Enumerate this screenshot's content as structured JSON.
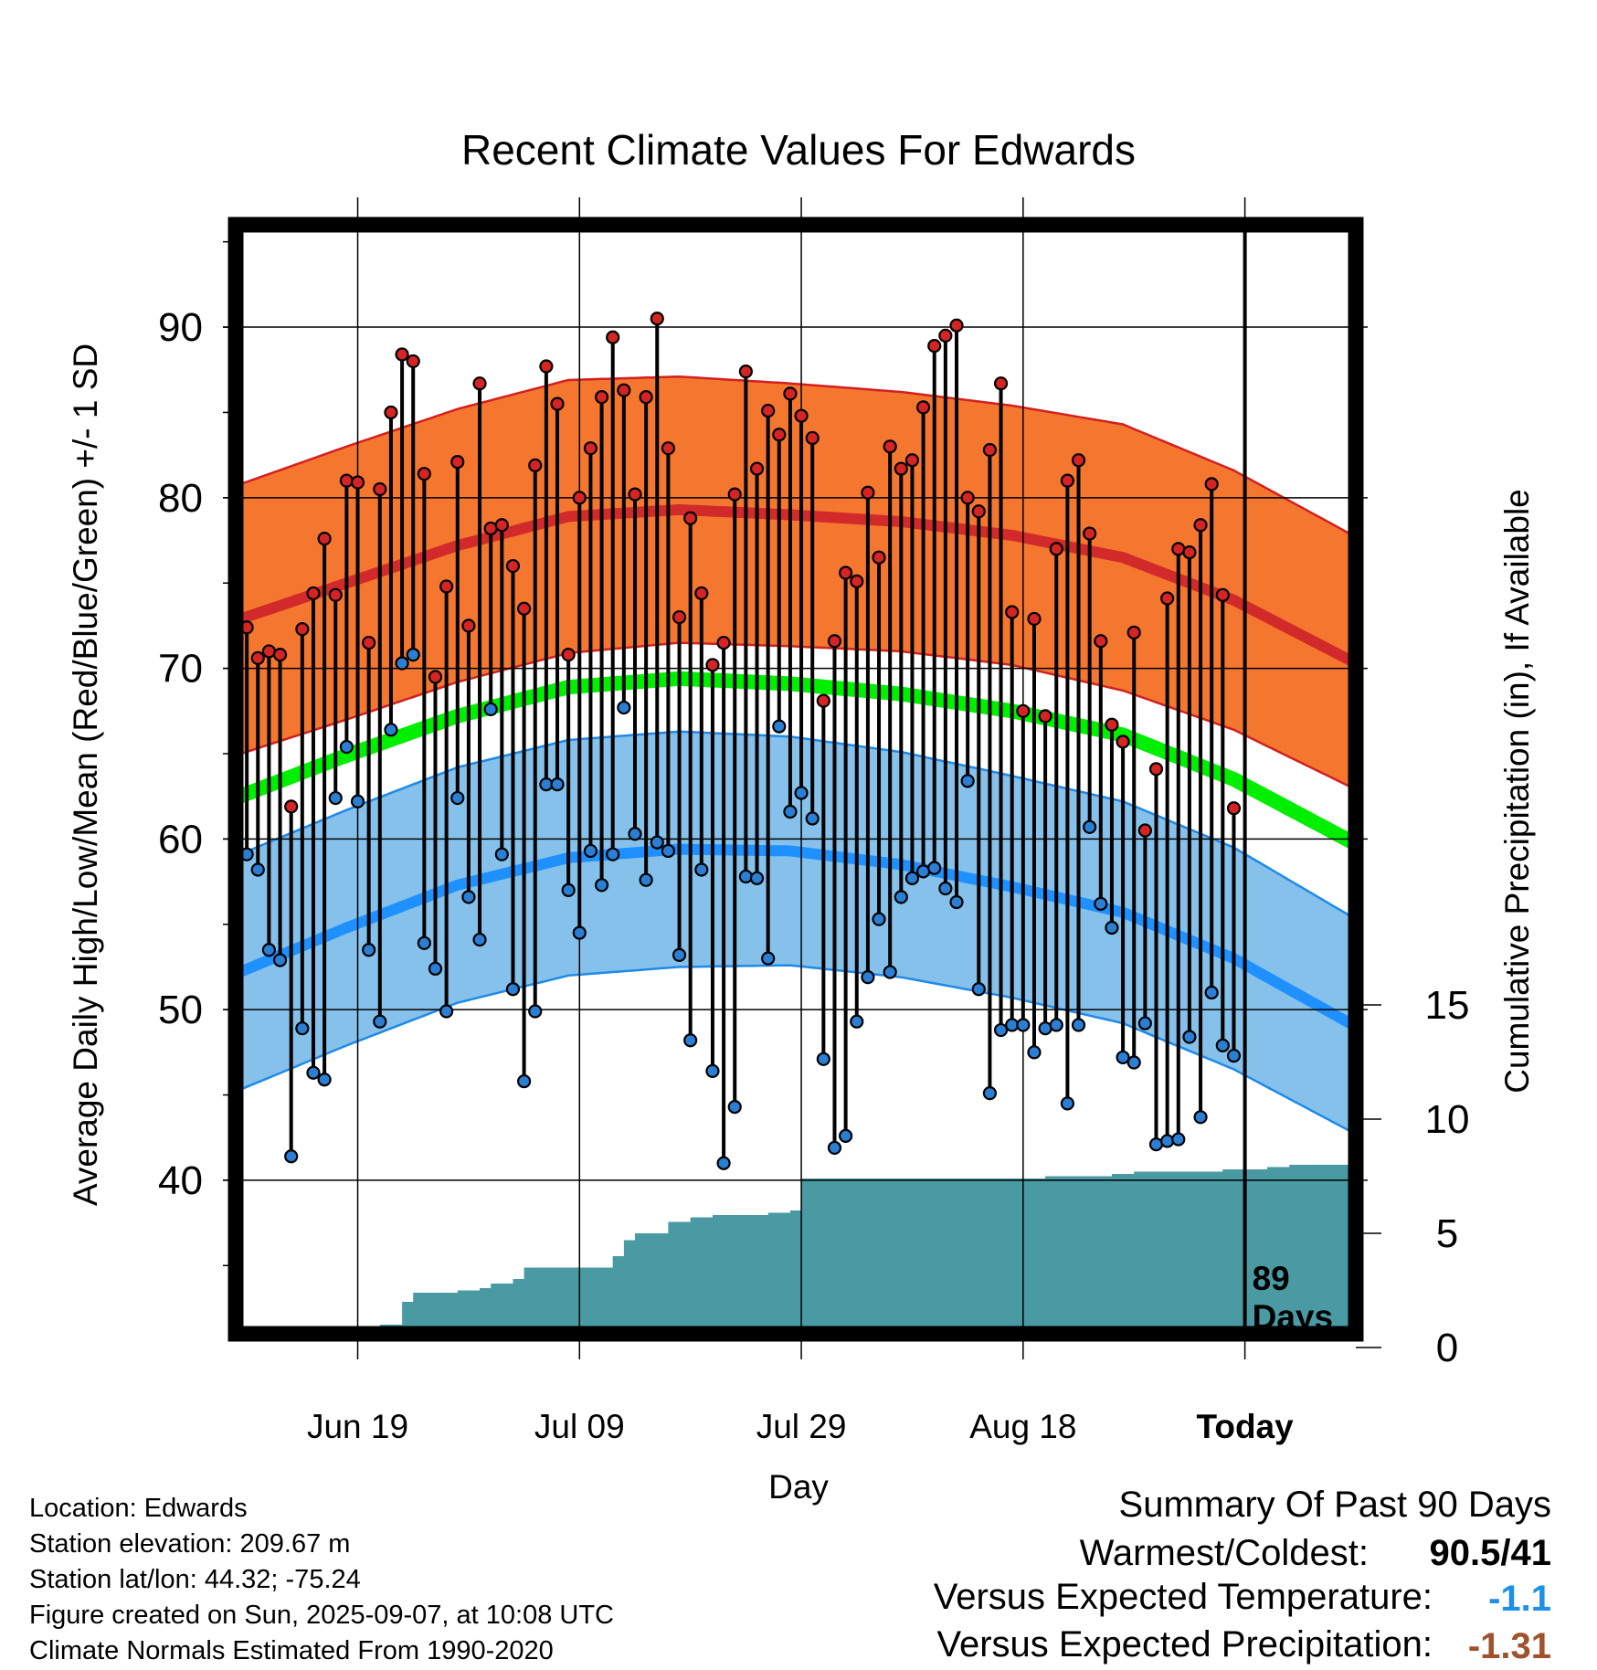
{
  "chart_data": {
    "type": "line",
    "title": "Recent Climate Values For Edwards",
    "xlabel": "Day",
    "ylabel": "Average Daily High/Low/Mean (Red/Blue/Green) +/- 1 SD",
    "y2label": "Cumulative Precipitation (in), If Available",
    "x_tick_labels": [
      "Jun 19",
      "Jul 09",
      "Jul 29",
      "Aug 18",
      "Today"
    ],
    "x_tick_days": [
      11,
      31,
      51,
      71,
      91
    ],
    "y_ticks": [
      40,
      50,
      60,
      70,
      80,
      90
    ],
    "y2_ticks": [
      0,
      5,
      10,
      15
    ],
    "ylim": [
      31,
      96
    ],
    "y2lim": [
      0,
      15
    ],
    "today_day": 91,
    "today_annotation": "89\nDays",
    "normals": {
      "day": [
        0,
        10,
        20,
        30,
        40,
        50,
        60,
        70,
        80,
        90,
        101
      ],
      "high_mean": [
        72.8,
        75.0,
        77.2,
        78.9,
        79.3,
        79.0,
        78.6,
        77.8,
        76.5,
        74.0,
        70.3
      ],
      "high_sd": [
        7.9,
        8.0,
        8.0,
        8.0,
        7.8,
        7.7,
        7.6,
        7.6,
        7.8,
        7.6,
        7.4
      ],
      "low_mean": [
        52.1,
        54.8,
        57.3,
        58.9,
        59.4,
        59.3,
        58.5,
        57.2,
        55.7,
        53.0,
        49.0
      ],
      "low_sd": [
        6.9,
        6.9,
        6.9,
        6.9,
        6.9,
        6.7,
        6.6,
        6.5,
        6.5,
        6.5,
        6.3
      ],
      "avg_mean": [
        62.4,
        64.9,
        67.2,
        68.9,
        69.4,
        69.1,
        68.5,
        67.5,
        66.1,
        63.5,
        59.7
      ]
    },
    "series": [
      {
        "name": "High",
        "values": [
          72.4,
          70.6,
          71.0,
          70.8,
          61.9,
          72.3,
          74.4,
          77.6,
          74.3,
          81.0,
          80.9,
          71.5,
          80.5,
          85.0,
          88.4,
          88.0,
          81.4,
          69.5,
          74.8,
          82.1,
          72.5,
          86.7,
          78.2,
          78.4,
          76.0,
          73.5,
          81.9,
          87.7,
          85.5,
          70.8,
          80.0,
          82.9,
          85.9,
          89.4,
          86.3,
          80.2,
          85.9,
          90.5,
          82.9,
          73.0,
          78.8,
          74.4,
          70.2,
          71.5,
          80.2,
          87.4,
          81.7,
          85.1,
          83.7,
          86.1,
          84.8,
          83.5,
          68.1,
          71.6,
          75.6,
          75.1,
          80.3,
          76.5,
          83.0,
          81.7,
          82.2,
          85.3,
          88.9,
          89.5,
          90.1,
          80.0,
          79.2,
          82.8,
          86.7,
          73.3,
          67.5,
          72.9,
          67.2,
          77.0,
          81.0,
          82.2,
          77.9,
          71.6,
          66.7,
          65.7,
          72.1,
          60.5,
          64.1,
          74.1,
          77.0,
          76.8,
          78.4,
          80.8,
          74.3,
          61.8
        ]
      },
      {
        "name": "Low",
        "values": [
          59.1,
          58.2,
          53.5,
          52.9,
          41.4,
          48.9,
          46.3,
          45.9,
          62.4,
          65.4,
          62.2,
          53.5,
          49.3,
          66.4,
          70.3,
          70.8,
          53.9,
          52.4,
          49.9,
          62.4,
          56.6,
          54.1,
          67.6,
          59.1,
          51.2,
          45.8,
          49.9,
          63.2,
          63.2,
          57.0,
          54.5,
          59.3,
          57.3,
          59.1,
          67.7,
          60.3,
          57.6,
          59.8,
          59.3,
          53.2,
          48.2,
          58.2,
          46.4,
          41.0,
          44.3,
          57.8,
          57.7,
          53.0,
          66.6,
          61.6,
          62.7,
          61.2,
          47.1,
          41.9,
          42.6,
          49.3,
          51.9,
          55.3,
          52.2,
          56.6,
          57.7,
          58.1,
          58.3,
          57.1,
          56.3,
          63.4,
          51.2,
          45.1,
          48.8,
          49.1,
          49.1,
          47.5,
          48.9,
          49.1,
          44.5,
          49.1,
          60.7,
          56.2,
          54.8,
          47.2,
          46.9,
          49.2,
          42.1,
          42.3,
          42.4,
          48.4,
          43.7,
          51.0,
          47.9,
          47.3
        ]
      },
      {
        "name": "Precipitation",
        "values": [
          0,
          0,
          0,
          0,
          0,
          0,
          0,
          0,
          0,
          0,
          0,
          0.25,
          0.5,
          1.0,
          1.0,
          2.0,
          2.4,
          2.4,
          2.4,
          2.4,
          2.5,
          2.5,
          2.6,
          2.8,
          2.8,
          3.0,
          3.5,
          3.5,
          3.5,
          3.5,
          3.5,
          3.5,
          3.5,
          3.5,
          4.0,
          4.7,
          5.0,
          5.0,
          5.0,
          5.5,
          5.5,
          5.7,
          5.7,
          5.8,
          5.8,
          5.8,
          5.8,
          5.8,
          5.9,
          5.9,
          6.0,
          7.4,
          7.4,
          7.4,
          7.4,
          7.4,
          7.4,
          7.4,
          7.4,
          7.4,
          7.4,
          7.4,
          7.4,
          7.4,
          7.4,
          7.4,
          7.4,
          7.4,
          7.4,
          7.4,
          7.4,
          7.4,
          7.4,
          7.5,
          7.5,
          7.5,
          7.5,
          7.5,
          7.5,
          7.6,
          7.6,
          7.7,
          7.7,
          7.7,
          7.7,
          7.7,
          7.7,
          7.7,
          7.7,
          7.8,
          7.8,
          7.8,
          7.8,
          7.9,
          7.9,
          8.0,
          8.0,
          8.0,
          8.0,
          8.0,
          8.0,
          8.0
        ]
      }
    ]
  },
  "info": {
    "location": "Location: Edwards",
    "elevation": "Station elevation: 209.67 m",
    "latlon": "Station lat/lon: 44.32; -75.24",
    "created": "Figure created on Sun, 2025-09-07, at 10:08 UTC",
    "normals_period": "Climate Normals Estimated From 1990-2020"
  },
  "summary": {
    "title": "Summary Of Past 90 Days",
    "warmest_coldest_label": "Warmest/Coldest:",
    "warmest_coldest_value": "90.5/41",
    "temp_label": "Versus Expected Temperature:",
    "temp_value": "-1.1",
    "temp_color": "#1e90e8",
    "precip_label": "Versus Expected Precipitation:",
    "precip_value": "-1.31",
    "precip_color": "#a0522d"
  },
  "colors": {
    "high_band": "#f5772f",
    "high_line": "#d22a2a",
    "high_edge": "#d22020",
    "low_band": "#85c1ea",
    "low_line": "#1e90ff",
    "low_edge": "#1e8ae8",
    "mean_line": "#00ee00",
    "precip": "#4a9aa3",
    "high_dot": "#d42424",
    "low_dot": "#2a7fd4"
  }
}
